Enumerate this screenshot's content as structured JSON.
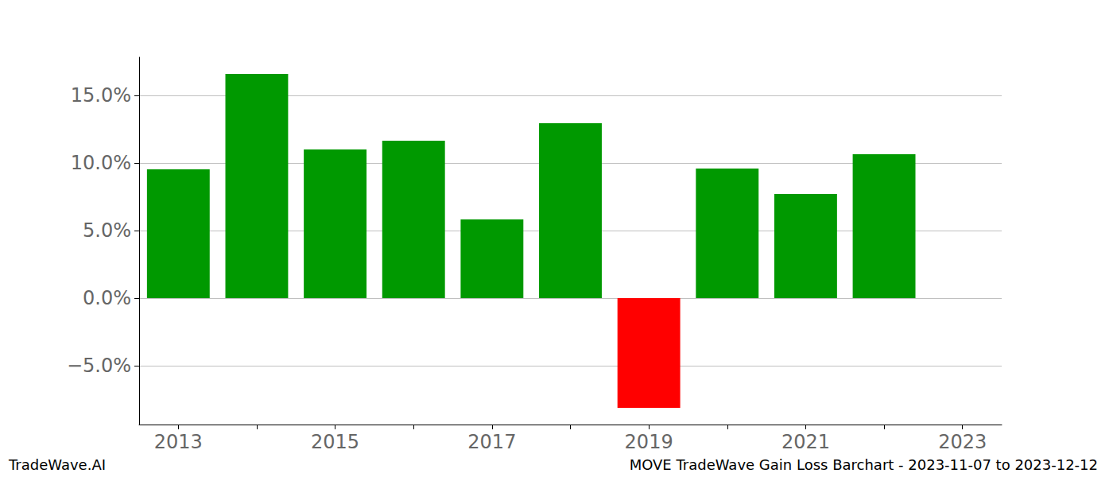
{
  "chart_data": {
    "type": "bar",
    "title": "MOVE TradeWave Gain Loss Barchart - 2023-11-07 to 2023-12-12",
    "annotations": [
      "TradeWave.AI"
    ],
    "categories": [
      "2013",
      null,
      "2015",
      null,
      "2017",
      null,
      "2019",
      null,
      "2021",
      null,
      "2023"
    ],
    "values": [
      9.53,
      16.59,
      11.0,
      11.65,
      5.82,
      12.94,
      -8.12,
      9.59,
      7.71,
      10.65,
      null
    ],
    "colors": [
      "#009900",
      "#009900",
      "#009900",
      "#009900",
      "#009900",
      "#009900",
      "#ff0000",
      "#009900",
      "#009900",
      "#009900",
      null
    ],
    "ylim": [
      -9.35,
      17.82
    ],
    "yticks": [
      {
        "value": -5,
        "label": "−5.0%"
      },
      {
        "value": 0,
        "label": "0.0%"
      },
      {
        "value": 5,
        "label": "5.0%"
      },
      {
        "value": 10,
        "label": "10.0%"
      },
      {
        "value": 15,
        "label": "15.0%"
      }
    ],
    "grid": true
  }
}
